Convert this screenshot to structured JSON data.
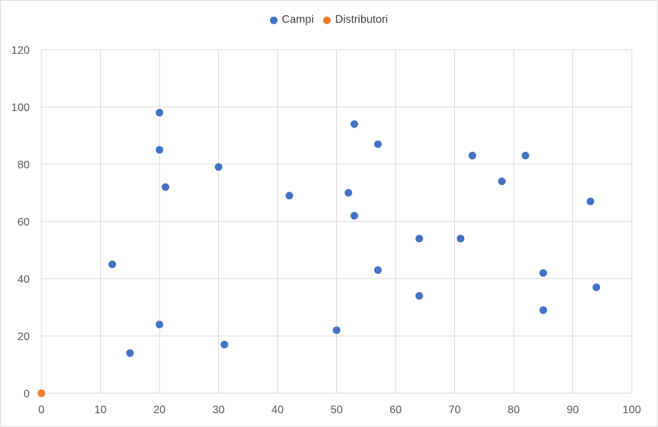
{
  "chart_data": {
    "type": "scatter",
    "title": "",
    "xlabel": "",
    "ylabel": "",
    "xlim": [
      0,
      100
    ],
    "ylim": [
      0,
      120
    ],
    "x_ticks": [
      "0",
      "10",
      "20",
      "30",
      "40",
      "50",
      "60",
      "70",
      "80",
      "90",
      "100"
    ],
    "y_ticks": [
      "0",
      "20",
      "40",
      "60",
      "80",
      "100",
      "120"
    ],
    "grid": true,
    "legend_position": "top",
    "series": [
      {
        "name": "Campi",
        "color": "#4472c4",
        "points": [
          {
            "x": 12,
            "y": 45
          },
          {
            "x": 15,
            "y": 14
          },
          {
            "x": 20,
            "y": 98
          },
          {
            "x": 20,
            "y": 85
          },
          {
            "x": 20,
            "y": 24
          },
          {
            "x": 21,
            "y": 72
          },
          {
            "x": 30,
            "y": 79
          },
          {
            "x": 31,
            "y": 17
          },
          {
            "x": 42,
            "y": 69
          },
          {
            "x": 50,
            "y": 22
          },
          {
            "x": 52,
            "y": 70
          },
          {
            "x": 53,
            "y": 94
          },
          {
            "x": 53,
            "y": 62
          },
          {
            "x": 57,
            "y": 87
          },
          {
            "x": 57,
            "y": 43
          },
          {
            "x": 64,
            "y": 54
          },
          {
            "x": 64,
            "y": 34
          },
          {
            "x": 71,
            "y": 54
          },
          {
            "x": 73,
            "y": 83
          },
          {
            "x": 78,
            "y": 74
          },
          {
            "x": 82,
            "y": 83
          },
          {
            "x": 85,
            "y": 42
          },
          {
            "x": 85,
            "y": 29
          },
          {
            "x": 93,
            "y": 67
          },
          {
            "x": 94,
            "y": 37
          }
        ]
      },
      {
        "name": "Distributori",
        "color": "#ed7d31",
        "points": [
          {
            "x": 0,
            "y": 0
          }
        ]
      }
    ]
  }
}
